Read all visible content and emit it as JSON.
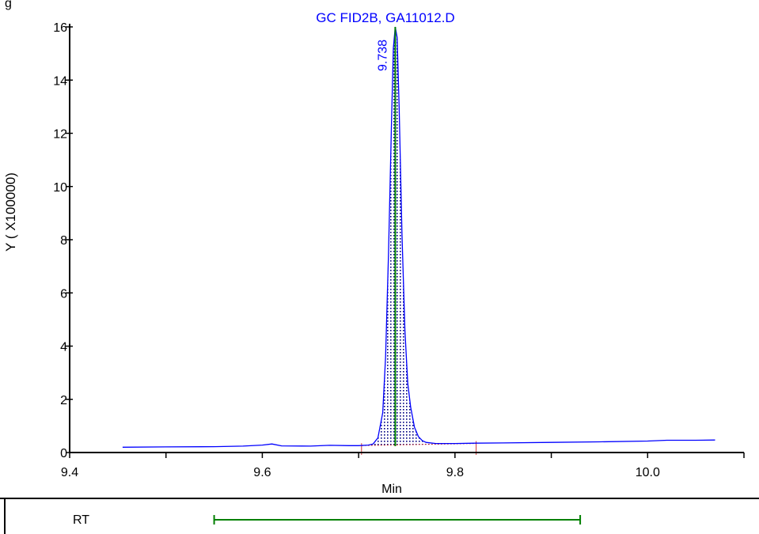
{
  "corner_text": "g",
  "chart_data": {
    "type": "line",
    "title": "GC FID2B, GA11012.D",
    "xlabel": "Min",
    "ylabel": "Y ( X100000)",
    "xlim": [
      9.4,
      10.1
    ],
    "ylim": [
      0,
      16
    ],
    "x_ticks": [
      9.4,
      9.6,
      9.8,
      10.0
    ],
    "x_tick_labels": [
      "9.4",
      "9.6",
      "9.8",
      "10.0"
    ],
    "y_ticks": [
      0,
      2,
      4,
      6,
      8,
      10,
      12,
      14,
      16
    ],
    "y_tick_labels": [
      "0",
      "2",
      "4",
      "6",
      "8",
      "10",
      "12",
      "14",
      "16"
    ],
    "series": [
      {
        "color": "#0000ff",
        "x": [
          9.455,
          9.5,
          9.55,
          9.58,
          9.6,
          9.61,
          9.62,
          9.65,
          9.67,
          9.69,
          9.7,
          9.71,
          9.715,
          9.72,
          9.725,
          9.728,
          9.731,
          9.734,
          9.736,
          9.738,
          9.74,
          9.742,
          9.745,
          9.748,
          9.751,
          9.754,
          9.758,
          9.762,
          9.766,
          9.77,
          9.78,
          9.8,
          9.82,
          9.85,
          9.9,
          9.95,
          10.0,
          10.02,
          10.05,
          10.07
        ],
        "y": [
          0.2,
          0.21,
          0.22,
          0.24,
          0.28,
          0.32,
          0.25,
          0.24,
          0.27,
          0.26,
          0.26,
          0.28,
          0.32,
          0.55,
          1.5,
          3.6,
          7.5,
          12.2,
          15.2,
          16.0,
          15.6,
          13.0,
          8.2,
          4.6,
          2.6,
          1.7,
          0.95,
          0.6,
          0.45,
          0.38,
          0.34,
          0.34,
          0.35,
          0.36,
          0.38,
          0.4,
          0.43,
          0.46,
          0.46,
          0.47
        ]
      }
    ],
    "peak": {
      "rt_label": "9.738",
      "rt": 9.738,
      "height": 16.0,
      "start": 9.703,
      "end": 9.822,
      "fill_pattern": "dots",
      "rt_line_color": "#008000",
      "boundary_color": "#cc3333"
    },
    "rt_row": {
      "label": "RT",
      "range_start": 9.55,
      "range_end": 9.93,
      "color": "#008000"
    },
    "grid": false,
    "legend": "none"
  }
}
